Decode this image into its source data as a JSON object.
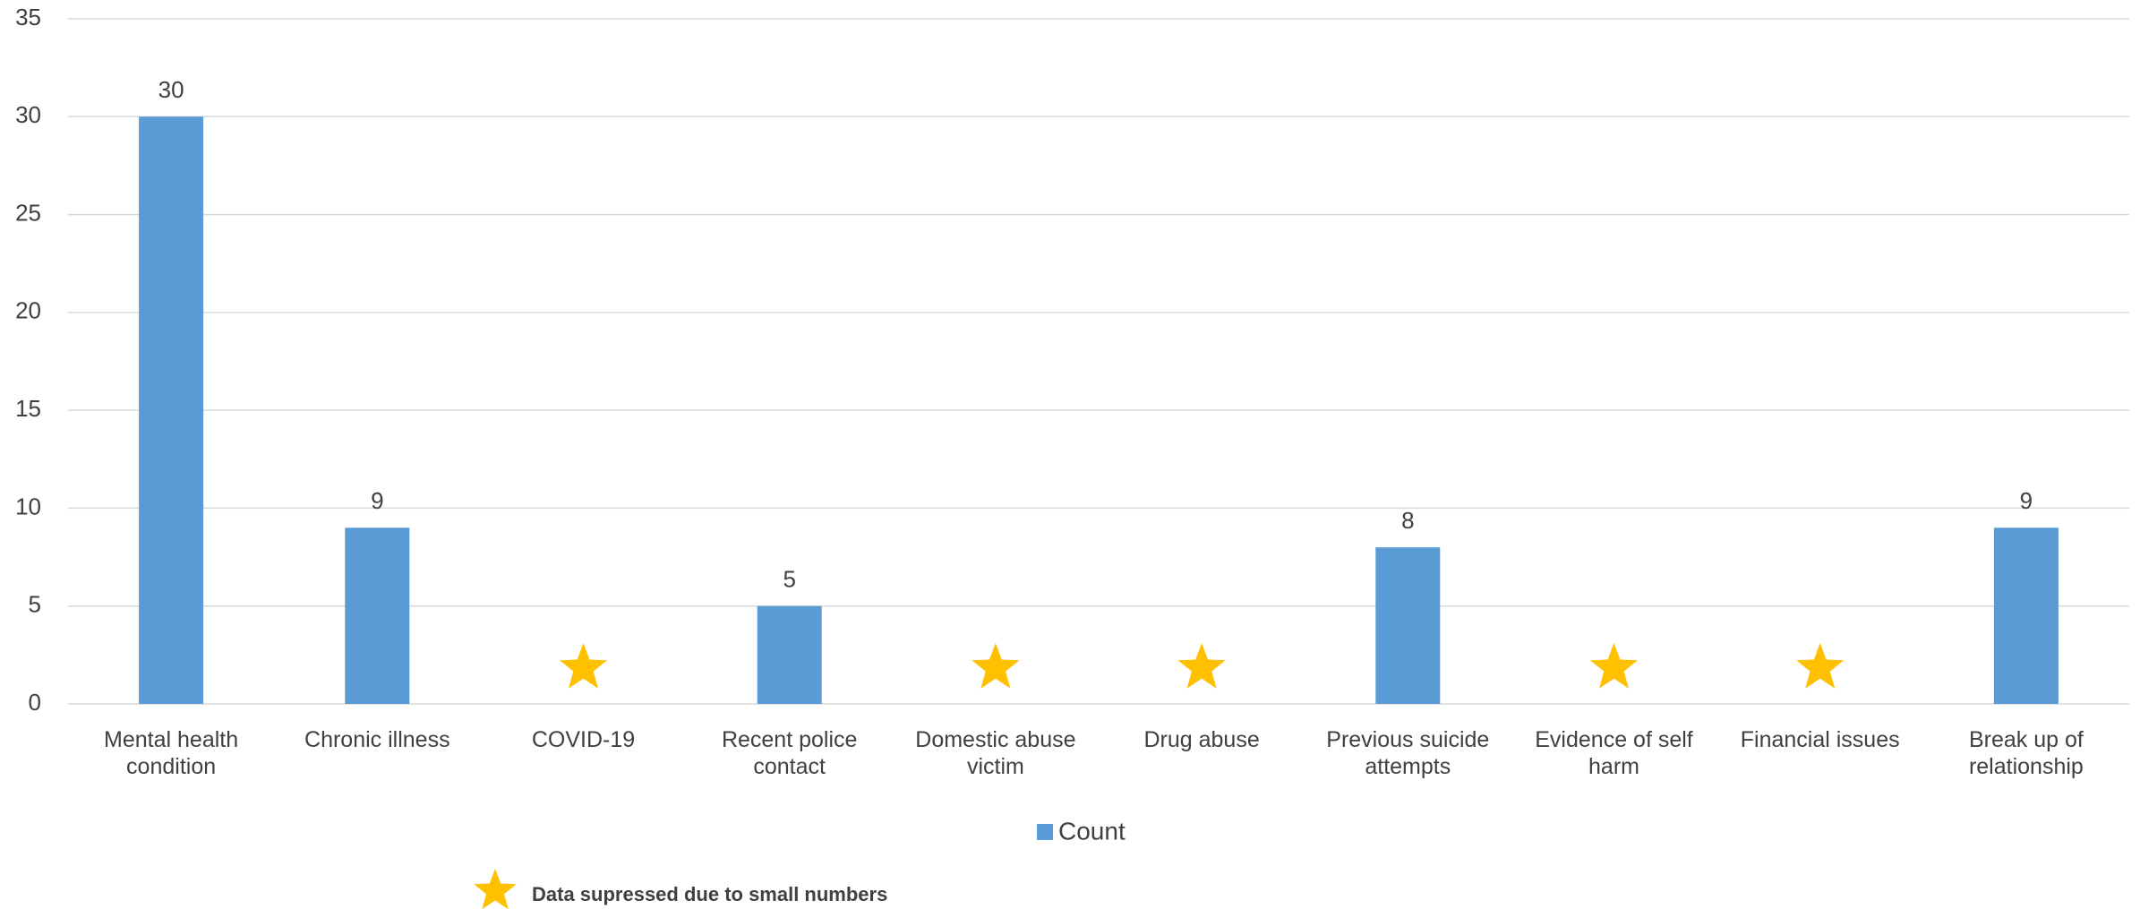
{
  "chart_data": {
    "type": "bar",
    "categories": [
      "Mental health condition",
      "Chronic illness",
      "COVID-19",
      "Recent police contact",
      "Domestic abuse victim",
      "Drug abuse",
      "Previous suicide attempts",
      "Evidence of self harm",
      "Financial issues",
      "Break up of relationship"
    ],
    "series": [
      {
        "name": "Count",
        "color": "#5b9bd5",
        "values": [
          30,
          9,
          null,
          5,
          null,
          null,
          8,
          null,
          null,
          9
        ]
      }
    ],
    "ylim": [
      0,
      35
    ],
    "yticks": [
      0,
      5,
      10,
      15,
      20,
      25,
      30,
      35
    ],
    "grid": true,
    "legend": "bottom",
    "suppressed_marker": {
      "color": "#ffc000",
      "label": "Data supressed due to small numbers"
    }
  }
}
